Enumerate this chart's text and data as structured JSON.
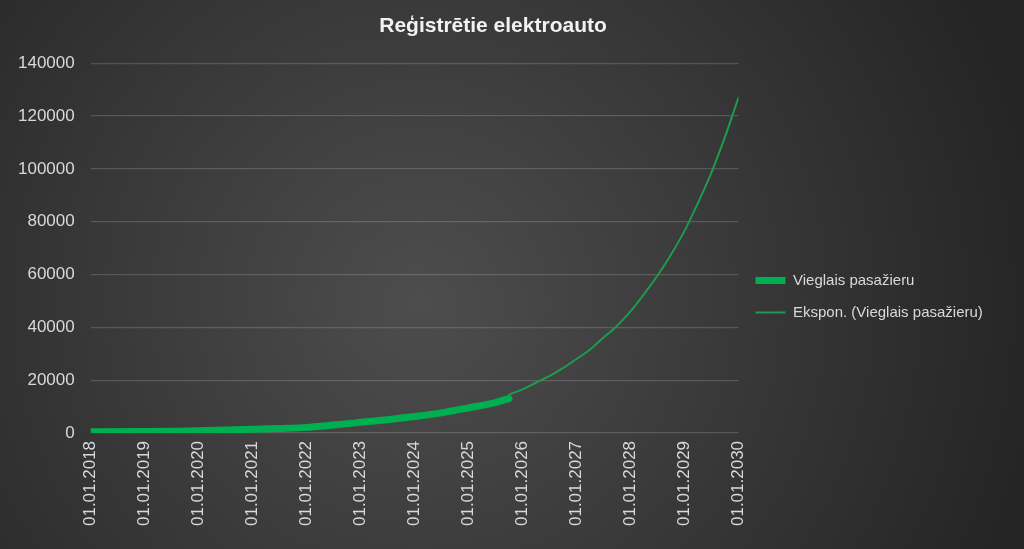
{
  "chart_data": {
    "type": "line",
    "title": "Reģistrētie elektroauto",
    "series": [
      {
        "name": "Vieglais pasažieru",
        "color": "#00b050",
        "x": [
          "2018-01",
          "2019-01",
          "2019-07",
          "2020-01",
          "2020-07",
          "2021-01",
          "2021-07",
          "2022-01",
          "2022-07",
          "2023-01",
          "2023-07",
          "2024-01",
          "2024-07",
          "2025-01",
          "2025-07",
          "2025-10"
        ],
        "values": [
          400,
          500,
          600,
          800,
          1100,
          1400,
          1700,
          2100,
          3000,
          4000,
          5000,
          6200,
          7600,
          9500,
          11500,
          13000
        ]
      },
      {
        "name": "Ekspon. (Vieglais pasažieru)",
        "color": "#1f9a4e",
        "x": [
          "2025-10",
          "2026-01",
          "2026-04",
          "2026-07",
          "2026-10",
          "2027-01",
          "2027-04",
          "2027-07",
          "2027-10",
          "2028-01",
          "2028-04",
          "2028-07",
          "2028-10",
          "2029-01",
          "2029-04",
          "2029-07",
          "2029-10",
          "2030-01"
        ],
        "values": [
          14500,
          16500,
          19000,
          21500,
          24500,
          28000,
          31500,
          36000,
          40500,
          46000,
          52500,
          59500,
          67500,
          76500,
          87000,
          98500,
          112000,
          127000
        ]
      }
    ],
    "xlim": [
      "2018-01-01",
      "2030-01-01"
    ],
    "xticks": [
      {
        "value": "2018-01-01",
        "label": "01.01.2018"
      },
      {
        "value": "2019-01-01",
        "label": "01.01.2019"
      },
      {
        "value": "2020-01-01",
        "label": "01.01.2020"
      },
      {
        "value": "2021-01-01",
        "label": "01.01.2021"
      },
      {
        "value": "2022-01-01",
        "label": "01.01.2022"
      },
      {
        "value": "2023-01-01",
        "label": "01.01.2023"
      },
      {
        "value": "2024-01-01",
        "label": "01.01.2024"
      },
      {
        "value": "2025-01-01",
        "label": "01.01.2025"
      },
      {
        "value": "2026-01-01",
        "label": "01.01.2026"
      },
      {
        "value": "2027-01-01",
        "label": "01.01.2027"
      },
      {
        "value": "2028-01-01",
        "label": "01.01.2028"
      },
      {
        "value": "2029-01-01",
        "label": "01.01.2029"
      },
      {
        "value": "2030-01-01",
        "label": "01.01.2030"
      }
    ],
    "ylim": [
      0,
      140000
    ],
    "yticks": [
      0,
      20000,
      40000,
      60000,
      80000,
      100000,
      120000,
      140000
    ],
    "grid": "y",
    "legend": "right"
  }
}
